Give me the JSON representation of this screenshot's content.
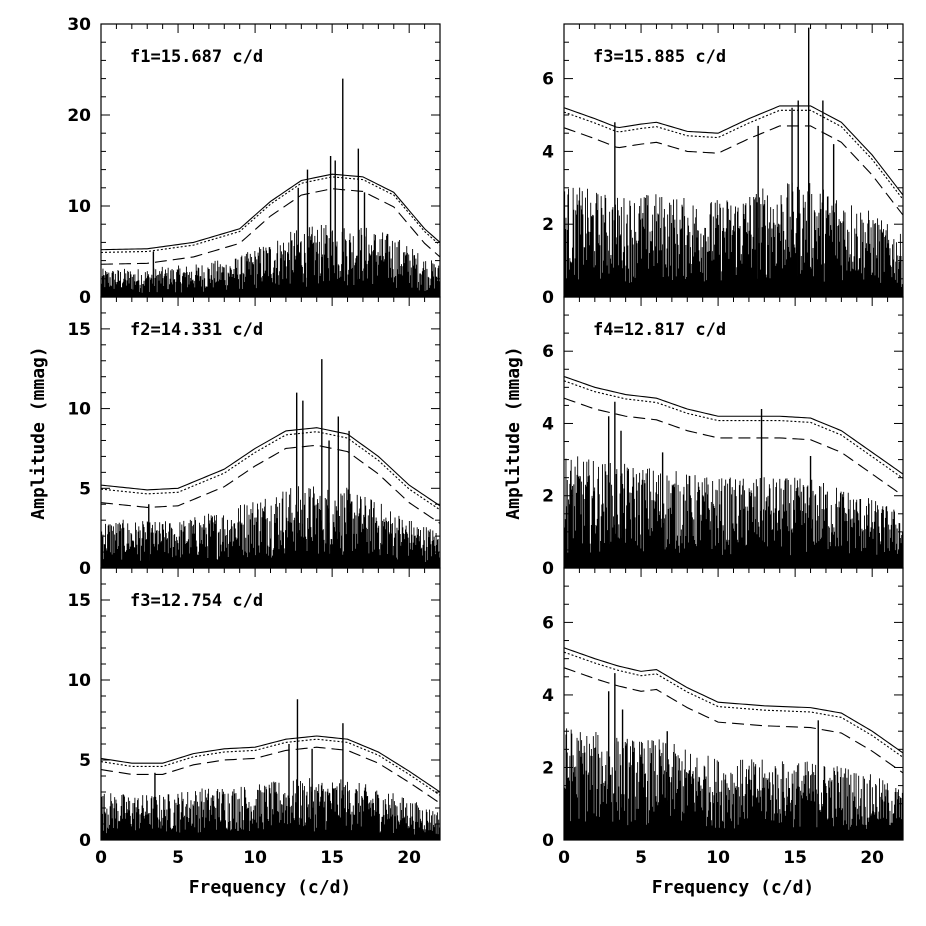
{
  "chart_data": [
    {
      "type": "line",
      "panel": "left-1",
      "annotation": "f1=15.687 c/d",
      "xlim": [
        0,
        22
      ],
      "ylim": [
        0,
        30
      ],
      "yticks": [
        0,
        10,
        20,
        30
      ],
      "show_x_tick_labels": false,
      "peaks": [
        [
          15.69,
          24.0
        ],
        [
          14.9,
          15.5
        ],
        [
          16.7,
          16.3
        ],
        [
          15.2,
          15.0
        ],
        [
          13.4,
          14.0
        ],
        [
          12.8,
          12.0
        ],
        [
          17.1,
          11.5
        ],
        [
          3.4,
          5.0
        ]
      ],
      "noise_envelope": [
        [
          0,
          5.2
        ],
        [
          3,
          5.3
        ],
        [
          6,
          6.0
        ],
        [
          9,
          7.5
        ],
        [
          11,
          10.5
        ],
        [
          13,
          12.8
        ],
        [
          15,
          13.5
        ],
        [
          17,
          13.2
        ],
        [
          19,
          11.5
        ],
        [
          21,
          7.5
        ],
        [
          22,
          6.0
        ]
      ],
      "series": [
        {
          "name": "solid",
          "style": "solid",
          "offset": 0
        },
        {
          "name": "dotted",
          "style": "dotted",
          "offset": -0.3
        },
        {
          "name": "dashed",
          "style": "dashed",
          "offset": -1.6
        }
      ]
    },
    {
      "type": "line",
      "panel": "left-2",
      "annotation": "f2=14.331 c/d",
      "xlim": [
        0,
        22
      ],
      "ylim": [
        0,
        17
      ],
      "yticks": [
        0,
        5,
        10,
        15
      ],
      "show_x_tick_labels": false,
      "peaks": [
        [
          14.33,
          13.1
        ],
        [
          12.7,
          11.0
        ],
        [
          13.1,
          10.5
        ],
        [
          15.4,
          9.5
        ],
        [
          16.1,
          8.6
        ],
        [
          14.8,
          8.0
        ],
        [
          3.1,
          4.0
        ]
      ],
      "noise_envelope": [
        [
          0,
          5.2
        ],
        [
          3,
          4.9
        ],
        [
          5,
          5.0
        ],
        [
          8,
          6.2
        ],
        [
          10,
          7.5
        ],
        [
          12,
          8.6
        ],
        [
          14,
          8.8
        ],
        [
          16,
          8.4
        ],
        [
          18,
          7.0
        ],
        [
          20,
          5.2
        ],
        [
          22,
          3.9
        ]
      ],
      "series": [
        {
          "name": "solid",
          "style": "solid",
          "offset": 0
        },
        {
          "name": "dotted",
          "style": "dotted",
          "offset": -0.25
        },
        {
          "name": "dashed",
          "style": "dashed",
          "offset": -1.1
        }
      ]
    },
    {
      "type": "line",
      "panel": "left-3",
      "annotation": "f3=12.754 c/d",
      "xlim": [
        0,
        22
      ],
      "ylim": [
        0,
        17
      ],
      "yticks": [
        0,
        5,
        10,
        15
      ],
      "show_x_tick_labels": true,
      "xticks": [
        0,
        5,
        10,
        15,
        20
      ],
      "peaks": [
        [
          12.75,
          8.8
        ],
        [
          15.7,
          7.3
        ],
        [
          12.2,
          6.0
        ],
        [
          13.7,
          5.7
        ],
        [
          3.5,
          4.2
        ]
      ],
      "noise_envelope": [
        [
          0,
          5.1
        ],
        [
          2,
          4.8
        ],
        [
          4,
          4.8
        ],
        [
          6,
          5.4
        ],
        [
          8,
          5.7
        ],
        [
          10,
          5.8
        ],
        [
          12,
          6.3
        ],
        [
          14,
          6.5
        ],
        [
          16,
          6.3
        ],
        [
          18,
          5.5
        ],
        [
          20,
          4.3
        ],
        [
          22,
          3.0
        ]
      ],
      "series": [
        {
          "name": "solid",
          "style": "solid",
          "offset": 0
        },
        {
          "name": "dotted",
          "style": "dotted",
          "offset": -0.2
        },
        {
          "name": "dashed",
          "style": "dashed",
          "offset": -0.7
        }
      ]
    },
    {
      "type": "line",
      "panel": "right-1",
      "annotation": "f3=15.885 c/d",
      "xlim": [
        0,
        22
      ],
      "ylim": [
        0,
        7.5
      ],
      "yticks": [
        0,
        2,
        4,
        6
      ],
      "show_x_tick_labels": false,
      "peaks": [
        [
          15.88,
          7.4
        ],
        [
          15.2,
          5.4
        ],
        [
          16.8,
          5.4
        ],
        [
          14.8,
          5.2
        ],
        [
          3.3,
          4.8
        ],
        [
          12.6,
          4.7
        ],
        [
          17.5,
          4.2
        ]
      ],
      "noise_envelope": [
        [
          0,
          5.2
        ],
        [
          2,
          4.9
        ],
        [
          3.5,
          4.65
        ],
        [
          5,
          4.75
        ],
        [
          6,
          4.8
        ],
        [
          8,
          4.55
        ],
        [
          10,
          4.5
        ],
        [
          12,
          4.9
        ],
        [
          14,
          5.25
        ],
        [
          16,
          5.25
        ],
        [
          18,
          4.8
        ],
        [
          20,
          3.9
        ],
        [
          22,
          2.8
        ]
      ],
      "series": [
        {
          "name": "solid",
          "style": "solid",
          "offset": 0
        },
        {
          "name": "dotted",
          "style": "dotted",
          "offset": -0.12
        },
        {
          "name": "dashed",
          "style": "dashed",
          "offset": -0.55
        }
      ]
    },
    {
      "type": "line",
      "panel": "right-2",
      "annotation": "f4=12.817 c/d",
      "xlim": [
        0,
        22
      ],
      "ylim": [
        0,
        7.5
      ],
      "yticks": [
        0,
        2,
        4,
        6
      ],
      "show_x_tick_labels": false,
      "peaks": [
        [
          12.82,
          4.4
        ],
        [
          3.3,
          4.6
        ],
        [
          2.9,
          4.2
        ],
        [
          3.7,
          3.8
        ],
        [
          6.4,
          3.2
        ],
        [
          16.0,
          3.1
        ]
      ],
      "noise_envelope": [
        [
          0,
          5.3
        ],
        [
          2,
          5.0
        ],
        [
          4,
          4.8
        ],
        [
          6,
          4.7
        ],
        [
          8,
          4.4
        ],
        [
          10,
          4.2
        ],
        [
          12,
          4.2
        ],
        [
          14,
          4.2
        ],
        [
          16,
          4.15
        ],
        [
          18,
          3.8
        ],
        [
          20,
          3.2
        ],
        [
          22,
          2.6
        ]
      ],
      "series": [
        {
          "name": "solid",
          "style": "solid",
          "offset": 0
        },
        {
          "name": "dotted",
          "style": "dotted",
          "offset": -0.12
        },
        {
          "name": "dashed",
          "style": "dashed",
          "offset": -0.6
        }
      ]
    },
    {
      "type": "line",
      "panel": "right-3",
      "annotation": "",
      "xlim": [
        0,
        22
      ],
      "ylim": [
        0,
        7.5
      ],
      "yticks": [
        0,
        2,
        4,
        6
      ],
      "show_x_tick_labels": true,
      "xticks": [
        0,
        5,
        10,
        15,
        20
      ],
      "peaks": [
        [
          3.3,
          4.6
        ],
        [
          2.9,
          4.1
        ],
        [
          3.8,
          3.6
        ],
        [
          16.5,
          3.3
        ],
        [
          6.7,
          3.0
        ]
      ],
      "noise_envelope": [
        [
          0,
          5.3
        ],
        [
          2,
          5.0
        ],
        [
          3.5,
          4.8
        ],
        [
          5,
          4.65
        ],
        [
          6,
          4.7
        ],
        [
          8,
          4.2
        ],
        [
          10,
          3.8
        ],
        [
          13,
          3.7
        ],
        [
          16,
          3.65
        ],
        [
          18,
          3.5
        ],
        [
          20,
          3.0
        ],
        [
          22,
          2.4
        ]
      ],
      "series": [
        {
          "name": "solid",
          "style": "solid",
          "offset": 0
        },
        {
          "name": "dotted",
          "style": "dotted",
          "offset": -0.12
        },
        {
          "name": "dashed",
          "style": "dashed",
          "offset": -0.55
        }
      ]
    }
  ],
  "axis_labels": {
    "left_y": "Amplitude (mmag)",
    "right_y": "Amplitude (mmag)",
    "left_x": "Frequency (c/d)",
    "right_x": "Frequency (c/d)"
  }
}
